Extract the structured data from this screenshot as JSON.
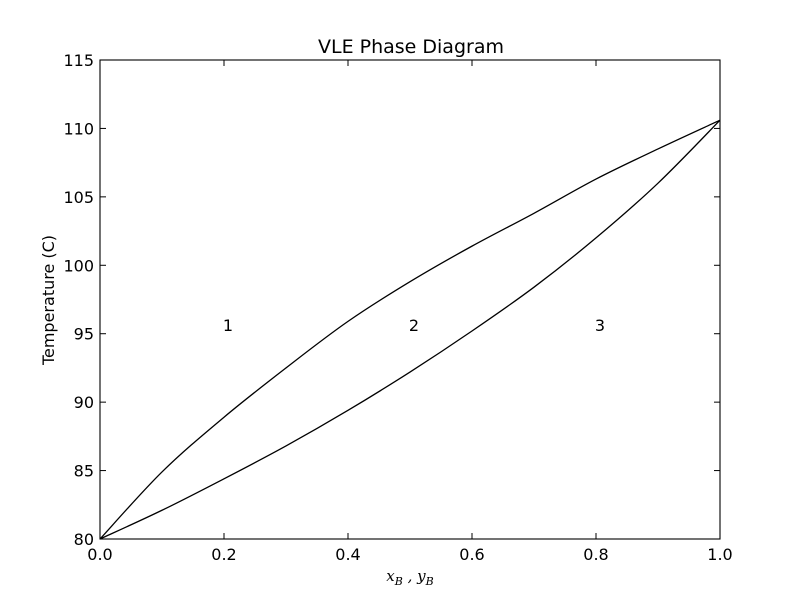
{
  "chart_data": {
    "type": "line",
    "title": "VLE Phase Diagram",
    "ylabel": "Temperature (C)",
    "xlabel": "x_B , y_B",
    "xlim": [
      0.0,
      1.0
    ],
    "ylim": [
      80,
      115
    ],
    "xticks": [
      "0.0",
      "0.2",
      "0.4",
      "0.6",
      "0.8",
      "1.0"
    ],
    "yticks": [
      "80",
      "85",
      "90",
      "95",
      "100",
      "105",
      "110",
      "115"
    ],
    "grid": false,
    "series": [
      {
        "x": [
          0.0,
          0.1,
          0.2,
          0.3,
          0.4,
          0.5,
          0.6,
          0.7,
          0.8,
          0.9,
          1.0
        ],
        "values": [
          80.0,
          84.9,
          88.9,
          92.5,
          95.9,
          98.8,
          101.4,
          103.8,
          106.3,
          108.5,
          110.6
        ]
      },
      {
        "x": [
          0.0,
          0.1,
          0.2,
          0.3,
          0.4,
          0.5,
          0.6,
          0.7,
          0.8,
          0.9,
          1.0
        ],
        "values": [
          80.0,
          82.1,
          84.4,
          86.8,
          89.4,
          92.2,
          95.2,
          98.4,
          102.0,
          106.0,
          110.6
        ]
      }
    ],
    "annotations": [
      {
        "text": "1",
        "x": 0.2,
        "y": 95.2
      },
      {
        "text": "2",
        "x": 0.5,
        "y": 95.2
      },
      {
        "text": "3",
        "x": 0.8,
        "y": 95.2
      }
    ]
  }
}
